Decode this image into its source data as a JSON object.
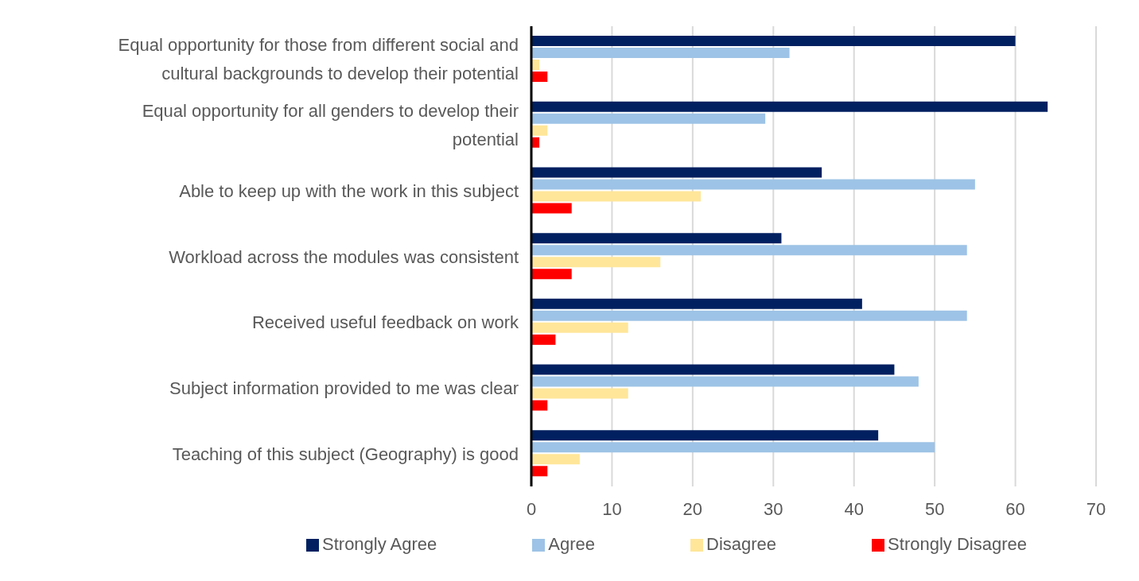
{
  "chart_data": {
    "type": "bar",
    "orientation": "horizontal",
    "categories": [
      "Equal opportunity for those from different social and cultural backgrounds to develop their potential",
      "Equal opportunity for all genders to develop their potential",
      "Able to keep up with the work in this subject",
      "Workload across the modules was consistent",
      "Received useful feedback on work",
      "Subject information provided to me was clear",
      "Teaching of this subject (Geography) is good"
    ],
    "series": [
      {
        "name": "Strongly Agree",
        "color": "#002060",
        "values": [
          60,
          64,
          36,
          31,
          41,
          45,
          43
        ]
      },
      {
        "name": "Agree",
        "color": "#9dc3e6",
        "values": [
          32,
          29,
          55,
          54,
          54,
          48,
          50
        ]
      },
      {
        "name": "Disagree",
        "color": "#ffe699",
        "values": [
          1,
          2,
          21,
          16,
          12,
          12,
          6
        ]
      },
      {
        "name": "Strongly Disagree",
        "color": "#ff0000",
        "values": [
          2,
          1,
          5,
          5,
          3,
          2,
          2
        ]
      }
    ],
    "xlim": [
      0,
      70
    ],
    "xticks": [
      0,
      10,
      20,
      30,
      40,
      50,
      60,
      70
    ],
    "grid": "x",
    "legend": "bottom"
  }
}
